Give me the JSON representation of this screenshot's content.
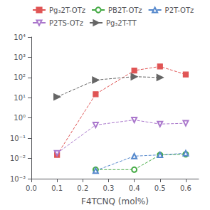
{
  "chart_data": {
    "type": "line",
    "xlabel": "F4TCNQ (mol%)",
    "log": "y",
    "grid": false,
    "legend": "upper left",
    "xlim": [
      0.0,
      0.65
    ],
    "ylim": [
      0.001,
      10000
    ],
    "xticks": [
      {
        "value": 0.0,
        "label": "0.0"
      },
      0.1,
      0.2,
      0.3,
      0.4,
      0.5,
      0.6
    ],
    "yticks": [
      {
        "value": 0.001,
        "label": "10⁻³"
      },
      {
        "value": 0.01,
        "label": "10⁻²"
      },
      {
        "value": 0.1,
        "label": "10⁻¹"
      },
      {
        "value": 1,
        "label": "10⁰"
      },
      {
        "value": 10,
        "label": "10¹"
      },
      {
        "value": 100,
        "label": "10²"
      },
      {
        "value": 1000,
        "label": "10³"
      },
      {
        "value": 10000,
        "label": "10⁴"
      }
    ],
    "series": [
      {
        "name": "Pg₃2T-OTz",
        "color": "#e05555",
        "marker": "square",
        "line_style": "dashed",
        "x": [
          0.1,
          0.25,
          0.4,
          0.5,
          0.6
        ],
        "values": [
          0.015,
          15,
          220,
          350,
          140
        ]
      },
      {
        "name": "PB2T-OTz",
        "color": "#44aa44",
        "marker": "circle_open",
        "line_style": "dashed",
        "x": [
          0.25,
          0.4,
          0.5,
          0.6
        ],
        "values": [
          0.0028,
          0.0028,
          0.015,
          0.016
        ]
      },
      {
        "name": "P2T-OTz",
        "color": "#5588cc",
        "marker": "triangle_up_open",
        "line_style": "dashed",
        "x": [
          0.25,
          0.4,
          0.5,
          0.6
        ],
        "values": [
          0.0025,
          0.013,
          0.015,
          0.018
        ]
      },
      {
        "name": "P2TS-OTz",
        "color": "#aa77cc",
        "marker": "triangle_down_open",
        "line_style": "dashed",
        "x": [
          0.1,
          0.25,
          0.4,
          0.5,
          0.6
        ],
        "values": [
          0.018,
          0.45,
          0.8,
          0.5,
          0.55
        ]
      },
      {
        "name": "Pg₃2T-TT",
        "color": "#666666",
        "marker": "triangle_right",
        "line_style": "dashed",
        "x": [
          0.1,
          0.25,
          0.4,
          0.5
        ],
        "values": [
          11,
          75,
          110,
          100
        ]
      }
    ]
  }
}
